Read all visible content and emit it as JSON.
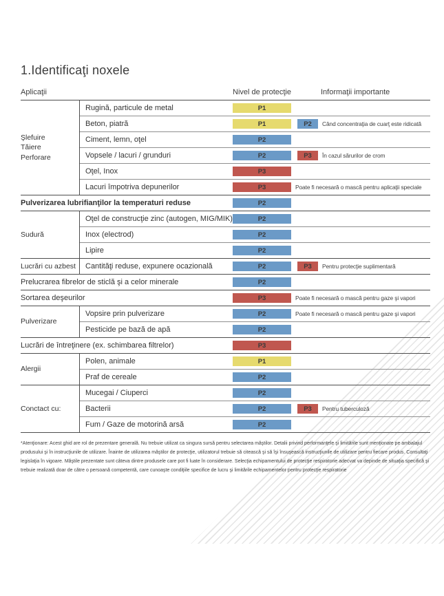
{
  "page": {
    "title": "1.Identificaţi noxele",
    "columns": {
      "applications": "Aplicaţii",
      "protection_level": "Nivel de protecţie",
      "important_info": "Informaţii importante"
    },
    "colors": {
      "P1": "#e6da6e",
      "P2": "#6b9ac7",
      "P3": "#c0574f"
    },
    "sections": [
      {
        "category_lines": [
          "Şlefuire",
          "Tăiere",
          "Perforare"
        ],
        "rows": [
          {
            "label": "Rugină, particule de metal",
            "primary": "P1"
          },
          {
            "label": "Beton, piatră",
            "primary": "P1",
            "secondary": "P2",
            "note": "Când concentraţia de cuarţ este ridicată"
          },
          {
            "label": "Ciment, lemn, oţel",
            "primary": "P2"
          },
          {
            "label": "Vopsele / lacuri / grunduri",
            "primary": "P2",
            "secondary": "P3",
            "note": "În cazul sărurilor de crom"
          },
          {
            "label": "Oţel, Inox",
            "primary": "P3"
          },
          {
            "label": "Lacuri împotriva depunerilor",
            "primary": "P3",
            "note": "Poate fi necesară o mască pentru aplicaţii speciale"
          }
        ]
      },
      {
        "rows": [
          {
            "label": "Pulverizarea lubrifianţilor la temperaturi reduse",
            "primary": "P2",
            "bold": true
          }
        ]
      },
      {
        "category_lines": [
          "Sudură"
        ],
        "rows": [
          {
            "label": "Oţel de construcţie zinc (autogen, MIG/MIK)",
            "primary": "P2"
          },
          {
            "label": "Inox (electrod)",
            "primary": "P2"
          },
          {
            "label": "Lipire",
            "primary": "P2"
          }
        ]
      },
      {
        "category_lines": [
          "Lucrări cu azbest"
        ],
        "rows": [
          {
            "label": "Cantităţi reduse, expunere ocazională",
            "primary": "P2",
            "secondary": "P3",
            "note": "Pentru protecţie suplimentară"
          }
        ]
      },
      {
        "rows": [
          {
            "label": "Prelucrarea fibrelor de sticlă şi a celor minerale",
            "primary": "P2"
          }
        ]
      },
      {
        "rows": [
          {
            "label": "Sortarea deşeurilor",
            "primary": "P3",
            "note": "Poate fi necesară o mască pentru gaze şi vapori"
          }
        ]
      },
      {
        "category_lines": [
          "Pulverizare"
        ],
        "rows": [
          {
            "label": "Vopsire prin pulverizare",
            "primary": "P2",
            "note": "Poate fi necesară o mască pentru gaze şi vapori"
          },
          {
            "label": "Pesticide pe bază de apă",
            "primary": "P2"
          }
        ]
      },
      {
        "rows": [
          {
            "label": "Lucrări de întreţinere (ex. schimbarea filtrelor)",
            "primary": "P3"
          }
        ]
      },
      {
        "category_lines": [
          "Alergii"
        ],
        "rows": [
          {
            "label": "Polen, animale",
            "primary": "P1"
          },
          {
            "label": "Praf de cereale",
            "primary": "P2"
          }
        ]
      },
      {
        "category_lines": [
          "Conctact cu:"
        ],
        "rows": [
          {
            "label": "Mucegai / Ciuperci",
            "primary": "P2"
          },
          {
            "label": "Bacterii",
            "primary": "P2",
            "secondary": "P3",
            "note": "Pentru tuberculoză"
          },
          {
            "label": "Fum / Gaze de motorină arsă",
            "primary": "P2"
          }
        ]
      }
    ],
    "footnote": "*Atenţionare: Acest ghid are rol de prezentare generală. Nu trebuie utilizat ca singura sursă pentru selectarea măştilor. Detalii privind performanţele şi limitările sunt menţionate pe ambalajul produsului şi în instrucţiunile de utilizare. Înainte de utilizarea măştilor de protecţie, utilizatorul trebuie să citească şi să îşi însuşească instrucţiunile de utilizare pentru fiecare produs. Consultaţi legislaţia în vigoare. Măştile prezentate sunt câteva dintre produsele care pot fi luate în considerare. Selecţia echipamentului de protecţie respiratorie adecvat va depinde de situaţia specifică şi trebuie realizată doar de către o persoană competentă, care cunoaşte condiţiile specifice de lucru şi limitările echipamentelor pentru protecţie respiratorie"
  }
}
